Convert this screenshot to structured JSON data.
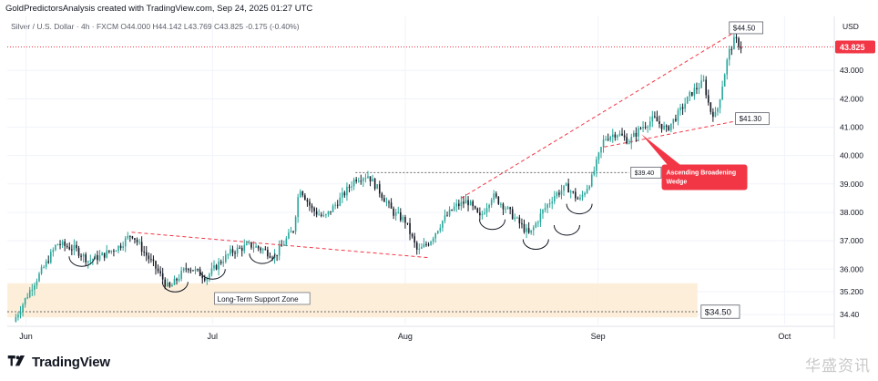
{
  "header": {
    "created_by": "GoldPredictorsAnalysis created with TradingView.com, Sep 24, 2025 01:27 UTC",
    "symbol_line": "Silver / U.S. Dollar · 4h · FXCM  O44.000  H44.142  L43.769  C43.825  -0.175 (-0.40%)",
    "currency": "USD"
  },
  "brand": {
    "logo_text": "TradingView"
  },
  "watermark": "华盛资讯",
  "colors": {
    "up": "#26a69a",
    "down": "#131722",
    "bg": "#ffffff",
    "grid": "#f0f3fa",
    "price_line": "#f23645",
    "price_badge": "#f23645",
    "support_fill": "#fdebd3",
    "callout": "#f23645",
    "dashed_line": "#f23645"
  },
  "chart_data": {
    "type": "candlestick",
    "instrument": "Silver / U.S. Dollar",
    "timeframe": "4h",
    "x_tick_labels": [
      "Jun",
      "Jul",
      "Aug",
      "Sep",
      "Oct"
    ],
    "x_ticks": [
      "2025-06-01",
      "2025-07-01",
      "2025-08-01",
      "2025-09-01",
      "2025-10-01"
    ],
    "xlim": [
      "2025-05-29",
      "2025-10-09"
    ],
    "y_tick_values": [
      34.4,
      35.2,
      36.0,
      37.0,
      38.0,
      39.0,
      40.0,
      41.0,
      42.0,
      43.0
    ],
    "y_tick_labels": [
      "34.40",
      "35.200",
      "36.000",
      "37.000",
      "38.000",
      "39.000",
      "40.000",
      "41.000",
      "42.000",
      "43.000"
    ],
    "ylim": [
      34.05,
      44.9
    ],
    "y_axis_side": "right",
    "last_price": 43.825,
    "last_price_label": "43.825",
    "ohlc_last": {
      "open": 44.0,
      "high": 44.142,
      "low": 43.769,
      "close": 43.825,
      "change": -0.175,
      "change_pct": -0.4
    },
    "price_path": [
      [
        "2025-05-30",
        34.15
      ],
      [
        "2025-06-02",
        35.4
      ],
      [
        "2025-06-04",
        36.1
      ],
      [
        "2025-06-06",
        36.9
      ],
      [
        "2025-06-09",
        36.7
      ],
      [
        "2025-06-11",
        36.3
      ],
      [
        "2025-06-13",
        36.45
      ],
      [
        "2025-06-16",
        36.8
      ],
      [
        "2025-06-18",
        37.25
      ],
      [
        "2025-06-20",
        36.6
      ],
      [
        "2025-06-22",
        36.0
      ],
      [
        "2025-06-24",
        35.3
      ],
      [
        "2025-06-27",
        36.1
      ],
      [
        "2025-06-30",
        35.7
      ],
      [
        "2025-07-02",
        36.2
      ],
      [
        "2025-07-04",
        36.6
      ],
      [
        "2025-07-07",
        36.85
      ],
      [
        "2025-07-09",
        36.7
      ],
      [
        "2025-07-11",
        36.45
      ],
      [
        "2025-07-14",
        37.4
      ],
      [
        "2025-07-15",
        38.9
      ],
      [
        "2025-07-17",
        38.1
      ],
      [
        "2025-07-19",
        37.8
      ],
      [
        "2025-07-22",
        38.6
      ],
      [
        "2025-07-24",
        39.2
      ],
      [
        "2025-07-26",
        39.3
      ],
      [
        "2025-07-28",
        38.7
      ],
      [
        "2025-07-30",
        38.0
      ],
      [
        "2025-08-01",
        37.7
      ],
      [
        "2025-08-03",
        36.6
      ],
      [
        "2025-08-05",
        37.0
      ],
      [
        "2025-08-07",
        37.7
      ],
      [
        "2025-08-09",
        38.2
      ],
      [
        "2025-08-11",
        38.4
      ],
      [
        "2025-08-13",
        37.8
      ],
      [
        "2025-08-15",
        38.6
      ],
      [
        "2025-08-17",
        38.2
      ],
      [
        "2025-08-19",
        37.7
      ],
      [
        "2025-08-21",
        37.2
      ],
      [
        "2025-08-23",
        38.0
      ],
      [
        "2025-08-25",
        38.6
      ],
      [
        "2025-08-27",
        38.9
      ],
      [
        "2025-08-29",
        38.4
      ],
      [
        "2025-08-31",
        39.2
      ],
      [
        "2025-09-02",
        40.6
      ],
      [
        "2025-09-04",
        40.8
      ],
      [
        "2025-09-06",
        40.5
      ],
      [
        "2025-09-08",
        41.0
      ],
      [
        "2025-09-10",
        41.3
      ],
      [
        "2025-09-12",
        40.9
      ],
      [
        "2025-09-14",
        41.5
      ],
      [
        "2025-09-16",
        42.2
      ],
      [
        "2025-09-18",
        42.6
      ],
      [
        "2025-09-19",
        41.6
      ],
      [
        "2025-09-20",
        41.4
      ],
      [
        "2025-09-21",
        42.5
      ],
      [
        "2025-09-22",
        43.6
      ],
      [
        "2025-09-23",
        44.1
      ],
      [
        "2025-09-24",
        43.825
      ]
    ],
    "support_zone": {
      "from": 34.3,
      "to": 35.5
    },
    "dashed_levels": [
      {
        "value": 39.4,
        "label": "$39.40",
        "from": "2025-07-24",
        "to": "2025-09-06"
      },
      {
        "value": 34.5,
        "label": "$34.50",
        "from": "2025-05-29",
        "to": "2025-09-17"
      }
    ],
    "trendlines": [
      {
        "name": "downtrend",
        "points": [
          [
            "2025-06-18",
            37.3
          ],
          [
            "2025-08-05",
            36.4
          ]
        ]
      },
      {
        "name": "wedge-upper",
        "points": [
          [
            "2025-08-10",
            38.5
          ],
          [
            "2025-09-23",
            44.35
          ]
        ]
      },
      {
        "name": "wedge-lower",
        "points": [
          [
            "2025-09-02",
            40.3
          ],
          [
            "2025-09-24",
            41.25
          ]
        ]
      }
    ],
    "price_labels": [
      {
        "text": "$44.50",
        "date": "2025-09-23",
        "value": 44.5
      },
      {
        "text": "$41.30",
        "date": "2025-09-24",
        "value": 41.3
      }
    ],
    "annotations": [
      {
        "text": "Long-Term Support Zone",
        "date": "2025-07-09",
        "value": 34.95
      },
      {
        "text": "Ascending Broadening Wedge",
        "date": "2025-09-13",
        "value": 39.3
      }
    ],
    "arcs": [
      {
        "center": "2025-06-10",
        "value": 36.45
      },
      {
        "center": "2025-06-25",
        "value": 35.55
      },
      {
        "center": "2025-07-01",
        "value": 36.0
      },
      {
        "center": "2025-07-09",
        "value": 36.55
      },
      {
        "center": "2025-08-15",
        "value": 37.75
      },
      {
        "center": "2025-08-22",
        "value": 37.05
      },
      {
        "center": "2025-08-27",
        "value": 37.55
      },
      {
        "center": "2025-08-29",
        "value": 38.3
      }
    ]
  }
}
